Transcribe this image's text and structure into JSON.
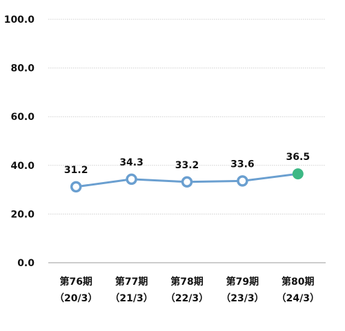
{
  "chart_data": {
    "type": "line",
    "title": "",
    "xlabel": "",
    "ylabel": "",
    "ylim": [
      0,
      100
    ],
    "yticks": [
      "100.0",
      "80.0",
      "60.0",
      "40.0",
      "20.0",
      "0.0"
    ],
    "yticks_values": [
      100,
      80,
      60,
      40,
      20,
      0
    ],
    "grid": true,
    "categories": [
      {
        "line1": "第76期",
        "line2": "（20/3）"
      },
      {
        "line1": "第77期",
        "line2": "（21/3）"
      },
      {
        "line1": "第78期",
        "line2": "（22/3）"
      },
      {
        "line1": "第79期",
        "line2": "（23/3）"
      },
      {
        "line1": "第80期",
        "line2": "（24/3）"
      }
    ],
    "series": [
      {
        "values": [
          31.2,
          34.3,
          33.2,
          33.6,
          36.5
        ],
        "labels": [
          "31.2",
          "34.3",
          "33.2",
          "33.6",
          "36.5"
        ]
      }
    ],
    "colors": {
      "line": "#6a9fd0",
      "marker_stroke": "#6a9fd0",
      "marker_fill": "#ffffff",
      "highlight": "#3cb884",
      "grid": "#cfcfcf",
      "axis": "#9a9a9a"
    },
    "highlight_index": 4
  }
}
